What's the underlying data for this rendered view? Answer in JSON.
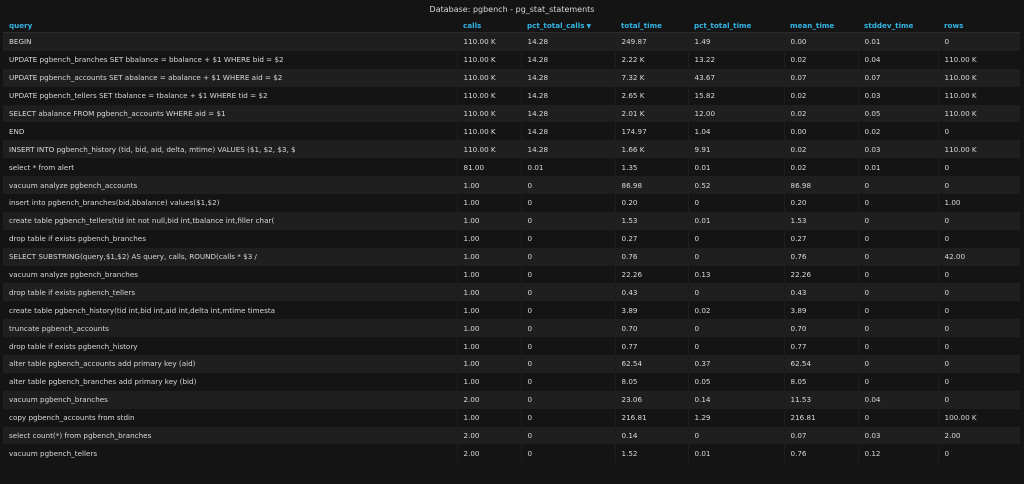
{
  "panel": {
    "title": "Database: pgbench - pg_stat_statements"
  },
  "columns": [
    {
      "key": "query",
      "label": "query"
    },
    {
      "key": "calls",
      "label": "calls"
    },
    {
      "key": "pct_total_calls",
      "label": "pct_total_calls",
      "sorted": "desc"
    },
    {
      "key": "total_time",
      "label": "total_time"
    },
    {
      "key": "pct_total_time",
      "label": "pct_total_time"
    },
    {
      "key": "mean_time",
      "label": "mean_time"
    },
    {
      "key": "stddev_time",
      "label": "stddev_time"
    },
    {
      "key": "rows",
      "label": "rows"
    }
  ],
  "sort_indicator": "▼",
  "rows": [
    [
      "BEGIN",
      "110.00 K",
      "14.28",
      "249.87",
      "1.49",
      "0.00",
      "0.01",
      "0"
    ],
    [
      "UPDATE pgbench_branches SET bbalance = bbalance + $1 WHERE bid = $2",
      "110.00 K",
      "14.28",
      "2.22 K",
      "13.22",
      "0.02",
      "0.04",
      "110.00 K"
    ],
    [
      "UPDATE pgbench_accounts SET abalance = abalance + $1 WHERE aid = $2",
      "110.00 K",
      "14.28",
      "7.32 K",
      "43.67",
      "0.07",
      "0.07",
      "110.00 K"
    ],
    [
      "UPDATE pgbench_tellers SET tbalance = tbalance + $1 WHERE tid = $2",
      "110.00 K",
      "14.28",
      "2.65 K",
      "15.82",
      "0.02",
      "0.03",
      "110.00 K"
    ],
    [
      "SELECT abalance FROM pgbench_accounts WHERE aid = $1",
      "110.00 K",
      "14.28",
      "2.01 K",
      "12.00",
      "0.02",
      "0.05",
      "110.00 K"
    ],
    [
      "END",
      "110.00 K",
      "14.28",
      "174.97",
      "1.04",
      "0.00",
      "0.02",
      "0"
    ],
    [
      "INSERT INTO pgbench_history (tid, bid, aid, delta, mtime) VALUES ($1, $2, $3, $",
      "110.00 K",
      "14.28",
      "1.66 K",
      "9.91",
      "0.02",
      "0.03",
      "110.00 K"
    ],
    [
      "select * from alert",
      "81.00",
      "0.01",
      "1.35",
      "0.01",
      "0.02",
      "0.01",
      "0"
    ],
    [
      "vacuum analyze pgbench_accounts",
      "1.00",
      "0",
      "86.98",
      "0.52",
      "86.98",
      "0",
      "0"
    ],
    [
      "insert into pgbench_branches(bid,bbalance) values($1,$2)",
      "1.00",
      "0",
      "0.20",
      "0",
      "0.20",
      "0",
      "1.00"
    ],
    [
      "create table pgbench_tellers(tid int not null,bid int,tbalance int,filler char(",
      "1.00",
      "0",
      "1.53",
      "0.01",
      "1.53",
      "0",
      "0"
    ],
    [
      "drop table if exists pgbench_branches",
      "1.00",
      "0",
      "0.27",
      "0",
      "0.27",
      "0",
      "0"
    ],
    [
      "SELECT SUBSTRING(query,$1,$2) AS query, calls, ROUND(calls * $3 /",
      "1.00",
      "0",
      "0.76",
      "0",
      "0.76",
      "0",
      "42.00"
    ],
    [
      "vacuum analyze pgbench_branches",
      "1.00",
      "0",
      "22.26",
      "0.13",
      "22.26",
      "0",
      "0"
    ],
    [
      "drop table if exists pgbench_tellers",
      "1.00",
      "0",
      "0.43",
      "0",
      "0.43",
      "0",
      "0"
    ],
    [
      "create table pgbench_history(tid int,bid int,aid int,delta int,mtime timesta",
      "1.00",
      "0",
      "3.89",
      "0.02",
      "3.89",
      "0",
      "0"
    ],
    [
      "truncate pgbench_accounts",
      "1.00",
      "0",
      "0.70",
      "0",
      "0.70",
      "0",
      "0"
    ],
    [
      "drop table if exists pgbench_history",
      "1.00",
      "0",
      "0.77",
      "0",
      "0.77",
      "0",
      "0"
    ],
    [
      "alter table pgbench_accounts add primary key (aid)",
      "1.00",
      "0",
      "62.54",
      "0.37",
      "62.54",
      "0",
      "0"
    ],
    [
      "alter table pgbench_branches add primary key (bid)",
      "1.00",
      "0",
      "8.05",
      "0.05",
      "8.05",
      "0",
      "0"
    ],
    [
      "vacuum pgbench_branches",
      "2.00",
      "0",
      "23.06",
      "0.14",
      "11.53",
      "0.04",
      "0"
    ],
    [
      "copy pgbench_accounts from stdin",
      "1.00",
      "0",
      "216.81",
      "1.29",
      "216.81",
      "0",
      "100.00 K"
    ],
    [
      "select count(*) from pgbench_branches",
      "2.00",
      "0",
      "0.14",
      "0",
      "0.07",
      "0.03",
      "2.00"
    ],
    [
      "vacuum pgbench_tellers",
      "2.00",
      "0",
      "1.52",
      "0.01",
      "0.76",
      "0.12",
      "0"
    ]
  ]
}
